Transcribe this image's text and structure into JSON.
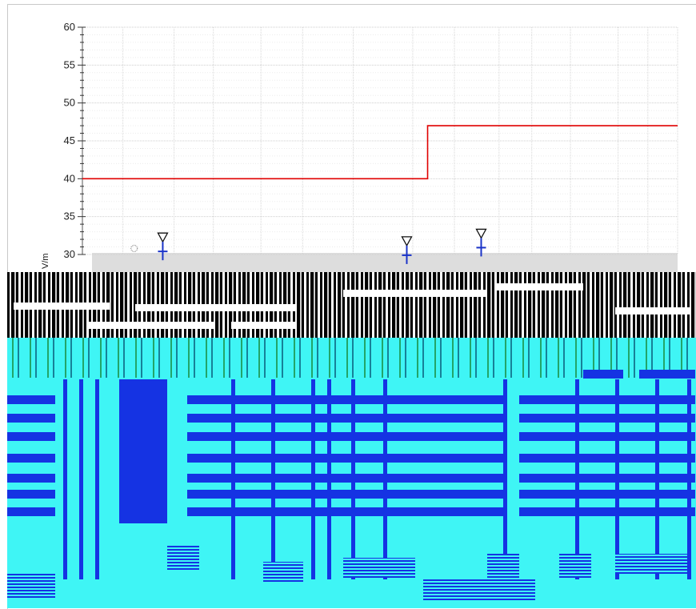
{
  "chart_data": {
    "type": "line",
    "title": "",
    "xlabel": "",
    "ylabel": "V/m",
    "ylim": [
      30,
      60
    ],
    "yticks": [
      "30",
      "35",
      "40",
      "45",
      "50",
      "55",
      "60"
    ],
    "grid": true,
    "series": [
      {
        "values": [
          {
            "x": 0.0,
            "y": 40
          },
          {
            "x": 0.58,
            "y": 40
          },
          {
            "x": 0.58,
            "y": 47
          },
          {
            "x": 1.0,
            "y": 47
          }
        ],
        "color": "#e00000"
      }
    ],
    "markers": [
      {
        "x": 0.135,
        "y": 30.5,
        "symbol": "triangle-down",
        "color": "#1a33c8"
      },
      {
        "x": 0.545,
        "y": 30.0,
        "symbol": "triangle-down",
        "color": "#1a33c8"
      },
      {
        "x": 0.67,
        "y": 31.0,
        "symbol": "triangle-down",
        "color": "#1a33c8"
      }
    ]
  },
  "colors": {
    "limit_line": "#e00000",
    "marker": "#1a33c8",
    "grid": "#d8d8d8",
    "noise_cyan": "#3ff5f5",
    "noise_blue": "#1533e3"
  }
}
